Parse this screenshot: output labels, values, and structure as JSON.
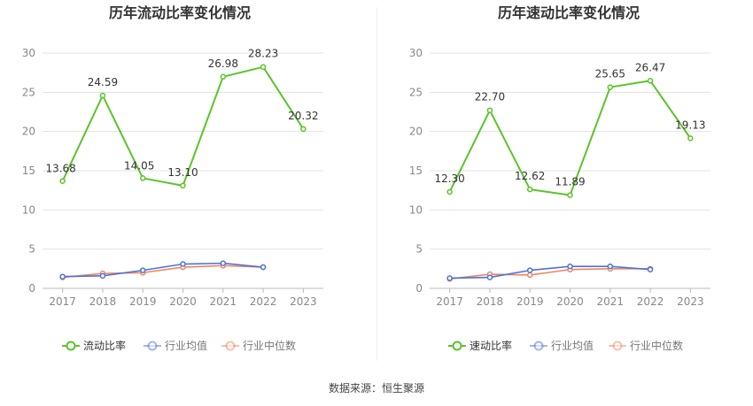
{
  "source_label": "数据来源：恒生聚源",
  "colors": {
    "main": "#5ac429",
    "avg": "#4d72d9",
    "median": "#f08560",
    "grid": "#e3e3e3",
    "axis_text": "#888888"
  },
  "chart_data": [
    {
      "type": "line",
      "title": "历年流动比率变化情况",
      "xlabel": "",
      "ylabel": "",
      "categories": [
        "2017",
        "2018",
        "2019",
        "2020",
        "2021",
        "2022",
        "2023"
      ],
      "ylim": [
        0,
        30
      ],
      "yticks": [
        0,
        5,
        10,
        15,
        20,
        25,
        30
      ],
      "grid": true,
      "legend": "bottom",
      "series": [
        {
          "name": "流动比率",
          "values": [
            13.68,
            24.59,
            14.05,
            13.1,
            26.98,
            28.23,
            20.32
          ],
          "labels": [
            "13.68",
            "24.59",
            "14.05",
            "13.10",
            "26.98",
            "28.23",
            "20.32"
          ],
          "color": "#5ac429"
        },
        {
          "name": "行业均值",
          "values": [
            1.5,
            1.6,
            2.3,
            3.1,
            3.2,
            2.7,
            null
          ],
          "color": "#4d72d9"
        },
        {
          "name": "行业中位数",
          "values": [
            1.4,
            1.9,
            2.0,
            2.7,
            2.9,
            2.7,
            null
          ],
          "color": "#f08560"
        }
      ]
    },
    {
      "type": "line",
      "title": "历年速动比率变化情况",
      "xlabel": "",
      "ylabel": "",
      "categories": [
        "2017",
        "2018",
        "2019",
        "2020",
        "2021",
        "2022",
        "2023"
      ],
      "ylim": [
        0,
        30
      ],
      "yticks": [
        0,
        5,
        10,
        15,
        20,
        25,
        30
      ],
      "grid": true,
      "legend": "bottom",
      "series": [
        {
          "name": "速动比率",
          "values": [
            12.3,
            22.7,
            12.62,
            11.89,
            25.65,
            26.47,
            19.13
          ],
          "labels": [
            "12.30",
            "22.70",
            "12.62",
            "11.89",
            "25.65",
            "26.47",
            "19.13"
          ],
          "color": "#5ac429"
        },
        {
          "name": "行业均值",
          "values": [
            1.3,
            1.4,
            2.3,
            2.8,
            2.8,
            2.4,
            null
          ],
          "color": "#4d72d9"
        },
        {
          "name": "行业中位数",
          "values": [
            1.2,
            1.8,
            1.7,
            2.4,
            2.5,
            2.5,
            null
          ],
          "color": "#f08560"
        }
      ]
    }
  ]
}
